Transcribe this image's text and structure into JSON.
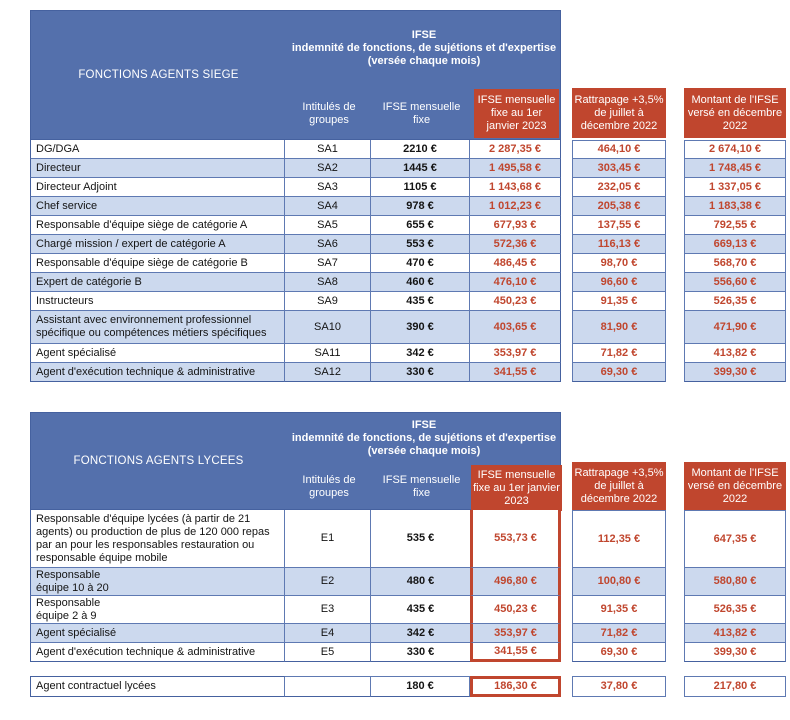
{
  "colors": {
    "header_blue": "#5470ac",
    "row_shaded_blue": "#ccd9ee",
    "accent_red": "#c0462e",
    "border_blue": "#5e79b2"
  },
  "shared": {
    "ifse_line1": "IFSE",
    "ifse_line2": "indemnité de fonctions, de sujétions et d'expertise",
    "ifse_line3": "(versée chaque mois)",
    "col_groups": "Intitulés de groupes",
    "col_fixe": "IFSE mensuelle fixe",
    "col_jan": "IFSE mensuelle fixe au 1er janvier 2023",
    "col_rattrapage": "Rattrapage +3,5% de juillet à décembre 2022",
    "col_montant": "Montant de l'IFSE versé en décembre 2022"
  },
  "tables": [
    {
      "title": "FONCTIONS AGENTS SIEGE",
      "rows": [
        {
          "label": "DG/DGA",
          "group": "SA1",
          "fixe": "2210 €",
          "jan": "2 287,35 €",
          "rattrapage": "464,10 €",
          "montant": "2 674,10 €",
          "shaded": false
        },
        {
          "label": "Directeur",
          "group": "SA2",
          "fixe": "1445 €",
          "jan": "1 495,58 €",
          "rattrapage": "303,45 €",
          "montant": "1 748,45 €",
          "shaded": true
        },
        {
          "label": "Directeur Adjoint",
          "group": "SA3",
          "fixe": "1105 €",
          "jan": "1 143,68 €",
          "rattrapage": "232,05 €",
          "montant": "1 337,05 €",
          "shaded": false
        },
        {
          "label": "Chef service",
          "group": "SA4",
          "fixe": "978 €",
          "jan": "1 012,23 €",
          "rattrapage": "205,38 €",
          "montant": "1 183,38 €",
          "shaded": true
        },
        {
          "label": "Responsable d'équipe siège de catégorie A",
          "group": "SA5",
          "fixe": "655 €",
          "jan": "677,93 €",
          "rattrapage": "137,55 €",
          "montant": "792,55 €",
          "shaded": false
        },
        {
          "label": "Chargé mission / expert de catégorie A",
          "group": "SA6",
          "fixe": "553 €",
          "jan": "572,36 €",
          "rattrapage": "116,13 €",
          "montant": "669,13 €",
          "shaded": true
        },
        {
          "label": "Responsable d'équipe siège de catégorie B",
          "group": "SA7",
          "fixe": "470 €",
          "jan": "486,45 €",
          "rattrapage": "98,70 €",
          "montant": "568,70 €",
          "shaded": false
        },
        {
          "label": "Expert de catégorie B",
          "group": "SA8",
          "fixe": "460 €",
          "jan": "476,10 €",
          "rattrapage": "96,60 €",
          "montant": "556,60 €",
          "shaded": true
        },
        {
          "label": "Instructeurs",
          "group": "SA9",
          "fixe": "435 €",
          "jan": "450,23 €",
          "rattrapage": "91,35 €",
          "montant": "526,35 €",
          "shaded": false
        },
        {
          "label": "Assistant avec environnement professionnel spécifique ou compétences métiers spécifiques",
          "group": "SA10",
          "fixe": "390 €",
          "jan": "403,65 €",
          "rattrapage": "81,90 €",
          "montant": "471,90 €",
          "shaded": true
        },
        {
          "label": "Agent spécialisé",
          "group": "SA11",
          "fixe": "342 €",
          "jan": "353,97 €",
          "rattrapage": "71,82 €",
          "montant": "413,82 €",
          "shaded": false
        },
        {
          "label": "Agent d'exécution technique & administrative",
          "group": "SA12",
          "fixe": "330 €",
          "jan": "341,55 €",
          "rattrapage": "69,30 €",
          "montant": "399,30 €",
          "shaded": true
        }
      ]
    },
    {
      "title": "FONCTIONS AGENTS LYCEES",
      "rows": [
        {
          "label": "Responsable d'équipe lycées (à partir de 21 agents) ou production de plus de 120 000 repas par an pour les responsables restauration ou responsable équipe mobile",
          "group": "E1",
          "fixe": "535 €",
          "jan": "553,73 €",
          "rattrapage": "112,35 €",
          "montant": "647,35 €",
          "shaded": false
        },
        {
          "label": "Responsable\néquipe 10 à 20",
          "group": "E2",
          "fixe": "480 €",
          "jan": "496,80 €",
          "rattrapage": "100,80 €",
          "montant": "580,80 €",
          "shaded": true
        },
        {
          "label": "Responsable\néquipe 2 à 9",
          "group": "E3",
          "fixe": "435 €",
          "jan": "450,23 €",
          "rattrapage": "91,35 €",
          "montant": "526,35 €",
          "shaded": false
        },
        {
          "label": "Agent spécialisé",
          "group": "E4",
          "fixe": "342 €",
          "jan": "353,97 €",
          "rattrapage": "71,82 €",
          "montant": "413,82 €",
          "shaded": true
        },
        {
          "label": "Agent d'exécution technique & administrative",
          "group": "E5",
          "fixe": "330 €",
          "jan": "341,55 €",
          "rattrapage": "69,30 €",
          "montant": "399,30 €",
          "shaded": false
        }
      ]
    }
  ],
  "footer": {
    "rows": [
      {
        "label": "Agent contractuel lycées",
        "group": "",
        "fixe": "180 €",
        "jan": "186,30 €",
        "rattrapage": "37,80 €",
        "montant": "217,80 €",
        "shaded": false
      }
    ]
  }
}
